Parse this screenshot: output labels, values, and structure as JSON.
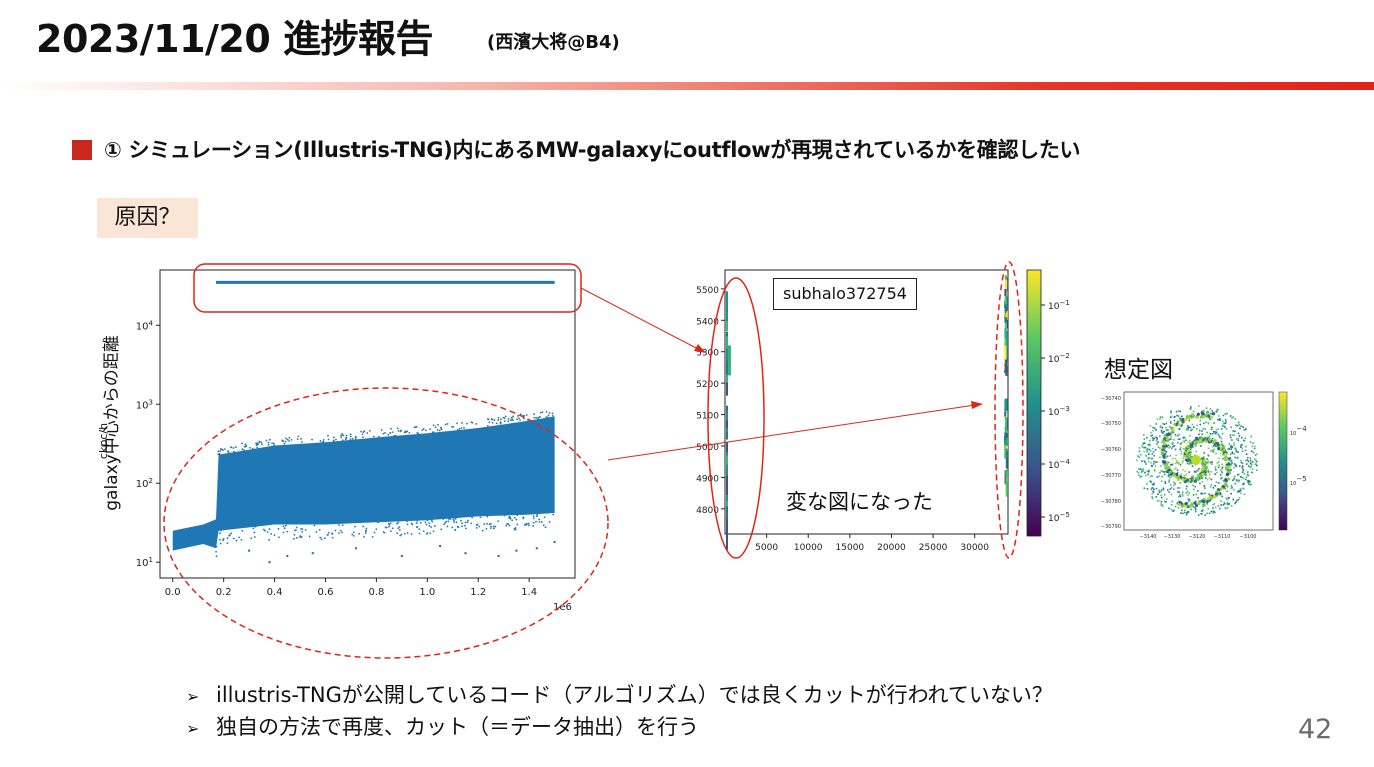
{
  "header": {
    "title": "2023/11/20 進捗報告",
    "subtitle": "(西濱大将@B4)"
  },
  "heading": {
    "text": "① シミュレーション(Illustris-TNG)内にあるMW-galaxyにoutflowが再現されているかを確認したい"
  },
  "cause_label": "原因？",
  "colors": {
    "accent_red": "#c8281e",
    "scatter_blue": "#1f77b4",
    "annotation_red": "#e02418",
    "label_bg": "#fbe5d6"
  },
  "chart_data": [
    {
      "type": "scatter",
      "xlabel": "",
      "ylabel": "galaxy中心からの距離",
      "ylabel_unit": "ckpc/h",
      "xlim": [
        -0.05,
        1.58
      ],
      "ylim_log10": [
        0.8,
        4.7
      ],
      "yscale": "log",
      "x_tick_labels": [
        "0.0",
        "0.2",
        "0.4",
        "0.6",
        "0.8",
        "1.0",
        "1.2",
        "1.4"
      ],
      "x_offset_label": "1e6",
      "y_tick_labels": [
        "10^1",
        "10^2",
        "10^3",
        "10^4"
      ],
      "series": [
        {
          "line_band": {
            "x_start": 0.17,
            "x_end": 1.5,
            "y": 35000
          },
          "dense_band": {
            "x": [
              0.0,
              0.12,
              0.17,
              0.18,
              0.4,
              0.6,
              0.8,
              1.0,
              1.2,
              1.4,
              1.5
            ],
            "y_low": [
              14,
              17,
              15,
              25,
              30,
              30,
              32,
              34,
              38,
              40,
              42
            ],
            "y_high": [
              25,
              30,
              35,
              230,
              300,
              330,
              380,
              430,
              500,
              620,
              700
            ]
          },
          "outliers": {
            "x": [
              0.3,
              0.38,
              0.45,
              0.55,
              0.72,
              0.9,
              1.05,
              1.15,
              1.28,
              1.35,
              1.43,
              1.5
            ],
            "y": [
              14,
              10,
              12,
              13,
              15,
              12,
              16,
              13,
              12,
              14,
              15,
              18
            ]
          }
        }
      ]
    },
    {
      "type": "heatmap",
      "xlabel": "",
      "ylabel": "",
      "x_tick_labels": [
        "5000",
        "10000",
        "15000",
        "20000",
        "25000",
        "30000"
      ],
      "y_tick_labels": [
        "4800",
        "4900",
        "5000",
        "5100",
        "5200",
        "5300",
        "5400",
        "5500"
      ],
      "xlim": [
        0,
        34000
      ],
      "ylim": [
        4720,
        5560
      ],
      "colorbar_tick_labels": [
        "10^-1",
        "10^-2",
        "10^-3",
        "10^-4",
        "10^-5"
      ],
      "annotation_box": "subhalo372754",
      "annotation_text": "変な図になった"
    },
    {
      "type": "heatmap",
      "title": "想定図",
      "x_tick_labels": [
        "−3140",
        "−3130",
        "−3120",
        "−3110",
        "−3100"
      ],
      "y_tick_labels": [
        "−30740",
        "−30750",
        "−30760",
        "−30770",
        "−30780",
        "−30790"
      ],
      "colorbar_tick_labels": [
        "10^-4",
        "10^-5"
      ]
    }
  ],
  "notes": {
    "marker": "➢",
    "items": [
      "illustris-TNGが公開しているコード（アルゴリズム）では良くカットが行われていない？",
      "独自の方法で再度、カット（＝データ抽出）を行う"
    ]
  },
  "page_number": "42"
}
